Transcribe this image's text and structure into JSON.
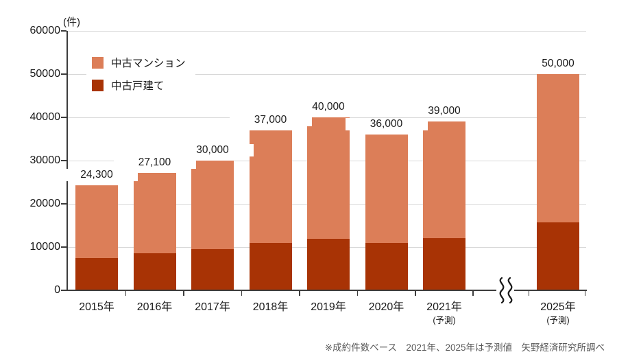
{
  "unit_label": "(件)",
  "legend": [
    {
      "label": "中古マンション",
      "color": "#DC7E58"
    },
    {
      "label": "中古戸建て",
      "color": "#A83305"
    }
  ],
  "footnote": "※成約件数ベース　2021年、2025年は予測値　矢野経済研究所調べ",
  "chart_data": {
    "type": "bar",
    "stacked": true,
    "title": "",
    "xlabel": "",
    "ylabel": "(件)",
    "ylim": [
      0,
      60000
    ],
    "yticks": [
      0,
      10000,
      20000,
      30000,
      40000,
      50000,
      60000
    ],
    "ytick_labels": [
      "0",
      "10000",
      "20000",
      "30000",
      "40000",
      "50000",
      "60000"
    ],
    "grid": true,
    "legend_position": "top-left-inside",
    "axis_break_between": [
      "2021年",
      "2025年"
    ],
    "categories": [
      "2015年",
      "2016年",
      "2017年",
      "2018年",
      "2019年",
      "2020年",
      "2021年",
      "2025年"
    ],
    "category_notes": [
      "",
      "",
      "",
      "",
      "",
      "",
      "(予測)",
      "(予測)"
    ],
    "totals": [
      24300,
      27100,
      30000,
      37000,
      40000,
      36000,
      39000,
      50000
    ],
    "total_labels": [
      "24,300",
      "27,100",
      "30,000",
      "37,000",
      "40,000",
      "36,000",
      "39,000",
      "50,000"
    ],
    "series": [
      {
        "name": "中古戸建て",
        "color": "#A83305",
        "values": [
          7400,
          8500,
          9500,
          10900,
          11900,
          10900,
          12000,
          15700
        ]
      },
      {
        "name": "中古マンション",
        "color": "#DC7E58",
        "values": [
          16900,
          18600,
          20500,
          26100,
          28100,
          25100,
          27000,
          34300
        ]
      }
    ]
  }
}
